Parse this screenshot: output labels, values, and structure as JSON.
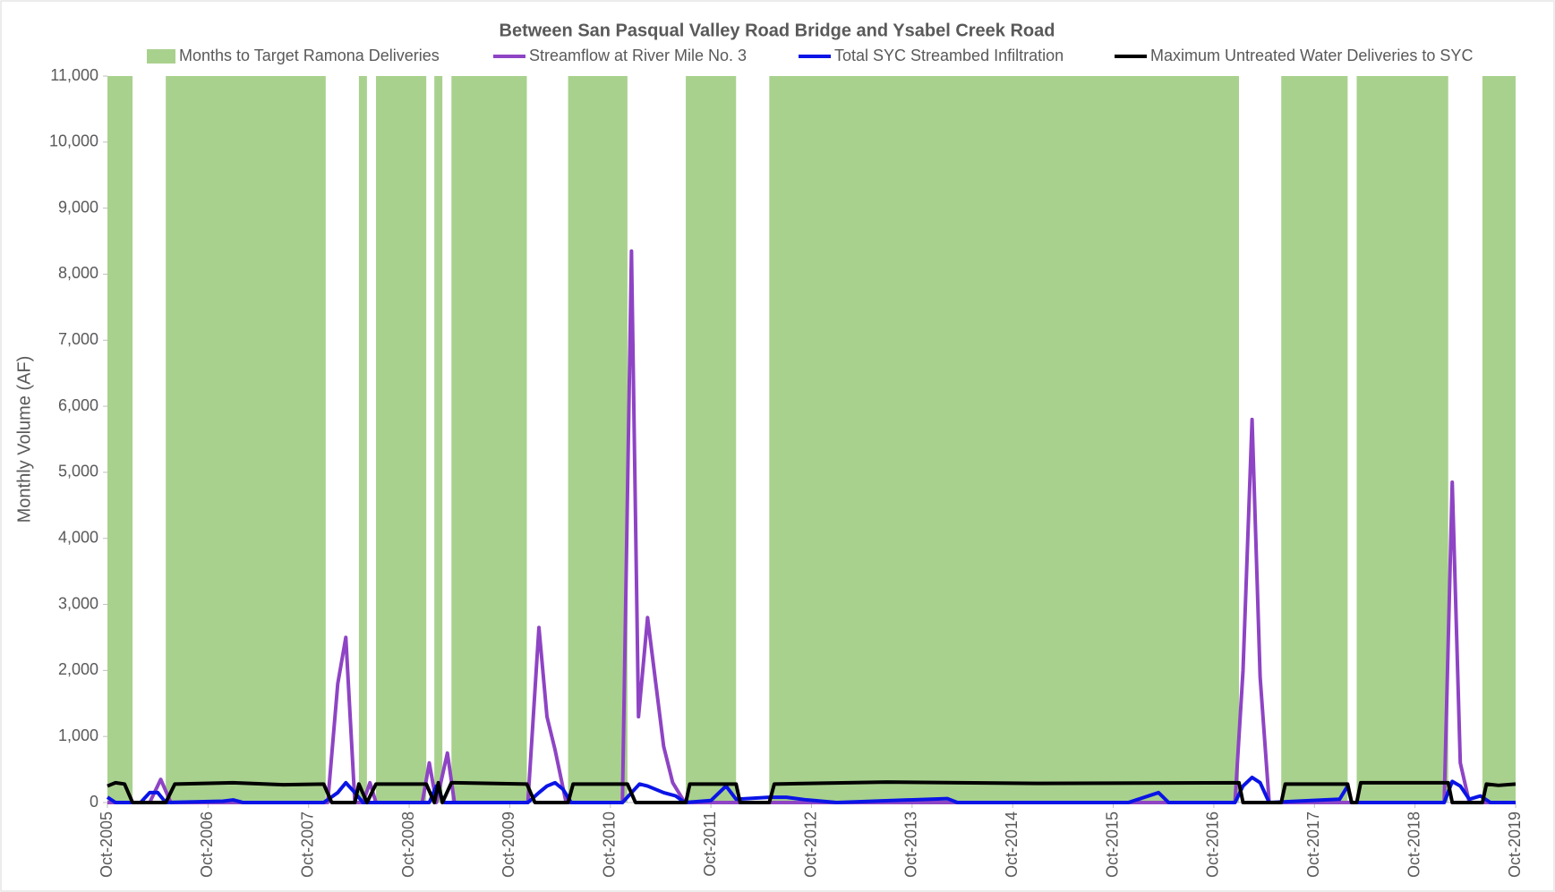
{
  "chart_data": {
    "type": "line",
    "title": "Between San Pasqual Valley Road Bridge and Ysabel Creek Road",
    "y_label": "Monthly Volume (AF)",
    "xlim": [
      2005.75,
      2019.75
    ],
    "xticks": [
      {
        "value": 2005.75,
        "label": "Oct-2005"
      },
      {
        "value": 2006.75,
        "label": "Oct-2006"
      },
      {
        "value": 2007.75,
        "label": "Oct-2007"
      },
      {
        "value": 2008.75,
        "label": "Oct-2008"
      },
      {
        "value": 2009.75,
        "label": "Oct-2009"
      },
      {
        "value": 2010.75,
        "label": "Oct-2010"
      },
      {
        "value": 2011.75,
        "label": "Oct-2011"
      },
      {
        "value": 2012.75,
        "label": "Oct-2012"
      },
      {
        "value": 2013.75,
        "label": "Oct-2013"
      },
      {
        "value": 2014.75,
        "label": "Oct-2014"
      },
      {
        "value": 2015.75,
        "label": "Oct-2015"
      },
      {
        "value": 2016.75,
        "label": "Oct-2016"
      },
      {
        "value": 2017.75,
        "label": "Oct-2017"
      },
      {
        "value": 2018.75,
        "label": "Oct-2018"
      },
      {
        "value": 2019.75,
        "label": "Oct-2019"
      }
    ],
    "ylim": [
      0,
      11000
    ],
    "yticks": [
      0,
      {
        "value": 1000,
        "label": "1,000"
      },
      {
        "value": 2000,
        "label": "2,000"
      },
      {
        "value": 3000,
        "label": "3,000"
      },
      {
        "value": 4000,
        "label": "4,000"
      },
      {
        "value": 5000,
        "label": "5,000"
      },
      {
        "value": 6000,
        "label": "6,000"
      },
      {
        "value": 7000,
        "label": "7,000"
      },
      {
        "value": 8000,
        "label": "8,000"
      },
      {
        "value": 9000,
        "label": "9,000"
      },
      {
        "value": 10000,
        "label": "10,000"
      },
      {
        "value": 11000,
        "label": "11,000"
      }
    ],
    "legend": "top",
    "series": [
      {
        "name": "Months to Target Ramona Deliveries",
        "type": "band",
        "color": "#a9d18e",
        "spans": [
          [
            2005.75,
            2006.0
          ],
          [
            2006.33,
            2007.92
          ],
          [
            2008.25,
            2008.33
          ],
          [
            2008.42,
            2008.92
          ],
          [
            2009.0,
            2009.08
          ],
          [
            2009.17,
            2009.92
          ],
          [
            2010.33,
            2010.92
          ],
          [
            2011.5,
            2012.0
          ],
          [
            2012.33,
            2017.0
          ],
          [
            2017.42,
            2018.08
          ],
          [
            2018.17,
            2019.08
          ],
          [
            2019.42,
            2019.75
          ]
        ]
      },
      {
        "name": "Streamflow at River Mile No. 3",
        "type": "line",
        "color": "#8e44c4",
        "x": [
          2005.75,
          2006.17,
          2006.28,
          2006.38,
          2007.94,
          2008.04,
          2008.12,
          2008.21,
          2008.29,
          2008.36,
          2008.42,
          2008.88,
          2008.95,
          2009.02,
          2009.13,
          2009.2,
          2009.93,
          2010.04,
          2010.12,
          2010.2,
          2010.31,
          2010.87,
          2010.96,
          2011.03,
          2011.12,
          2011.28,
          2011.37,
          2011.49,
          2016.96,
          2017.04,
          2017.13,
          2017.21,
          2017.3,
          2019.04,
          2019.12,
          2019.2,
          2019.29,
          2019.75
        ],
        "values": [
          0,
          0,
          350,
          0,
          0,
          1800,
          2500,
          0,
          0,
          300,
          0,
          0,
          600,
          0,
          750,
          0,
          0,
          2650,
          1300,
          800,
          0,
          0,
          8350,
          1300,
          2800,
          850,
          300,
          0,
          0,
          2000,
          5800,
          1900,
          0,
          0,
          4850,
          600,
          0,
          0
        ]
      },
      {
        "name": "Total SYC Streambed Infiltration",
        "type": "line",
        "color": "#0a14e6",
        "x": [
          2005.75,
          2005.83,
          2006.08,
          2006.17,
          2006.25,
          2006.33,
          2006.9,
          2007.0,
          2007.1,
          2007.9,
          2008.04,
          2008.12,
          2008.21,
          2008.29,
          2008.95,
          2009.02,
          2009.1,
          2009.93,
          2010.04,
          2010.12,
          2010.2,
          2010.28,
          2010.36,
          2010.87,
          2011.04,
          2011.12,
          2011.28,
          2011.4,
          2011.49,
          2011.75,
          2011.9,
          2012.0,
          2012.33,
          2012.5,
          2012.7,
          2013.0,
          2014.1,
          2014.2,
          2014.3,
          2015.9,
          2016.2,
          2016.3,
          2016.96,
          2017.04,
          2017.13,
          2017.21,
          2017.3,
          2018.0,
          2018.08,
          2018.12,
          2019.04,
          2019.12,
          2019.2,
          2019.29,
          2019.4,
          2019.5,
          2019.75
        ],
        "values": [
          80,
          0,
          0,
          150,
          150,
          0,
          20,
          40,
          0,
          0,
          150,
          300,
          150,
          0,
          0,
          250,
          0,
          0,
          150,
          250,
          300,
          200,
          0,
          0,
          280,
          250,
          150,
          100,
          0,
          30,
          250,
          50,
          80,
          80,
          40,
          0,
          60,
          0,
          0,
          0,
          150,
          0,
          0,
          250,
          380,
          300,
          0,
          50,
          250,
          0,
          0,
          320,
          250,
          50,
          100,
          0,
          0
        ]
      },
      {
        "name": "Maximum Untreated Water Deliveries to SYC",
        "type": "line",
        "color": "#000000",
        "x": [
          2005.75,
          2005.83,
          2005.92,
          2006.0,
          2006.33,
          2006.42,
          2007.0,
          2007.5,
          2007.9,
          2007.98,
          2008.21,
          2008.25,
          2008.33,
          2008.42,
          2008.92,
          2009.0,
          2009.04,
          2009.08,
          2009.17,
          2009.92,
          2010.0,
          2010.33,
          2010.38,
          2010.92,
          2011.0,
          2011.5,
          2011.54,
          2012.0,
          2012.04,
          2012.33,
          2012.38,
          2013.5,
          2015.0,
          2017.0,
          2017.04,
          2017.42,
          2017.46,
          2018.08,
          2018.12,
          2018.17,
          2018.21,
          2019.08,
          2019.12,
          2019.42,
          2019.46,
          2019.58,
          2019.75
        ],
        "values": [
          250,
          300,
          280,
          0,
          0,
          280,
          300,
          270,
          280,
          0,
          0,
          280,
          0,
          280,
          280,
          0,
          300,
          0,
          300,
          280,
          0,
          0,
          280,
          280,
          0,
          0,
          280,
          280,
          0,
          0,
          280,
          310,
          290,
          300,
          0,
          0,
          280,
          280,
          0,
          0,
          300,
          300,
          0,
          0,
          280,
          260,
          280
        ]
      }
    ]
  }
}
